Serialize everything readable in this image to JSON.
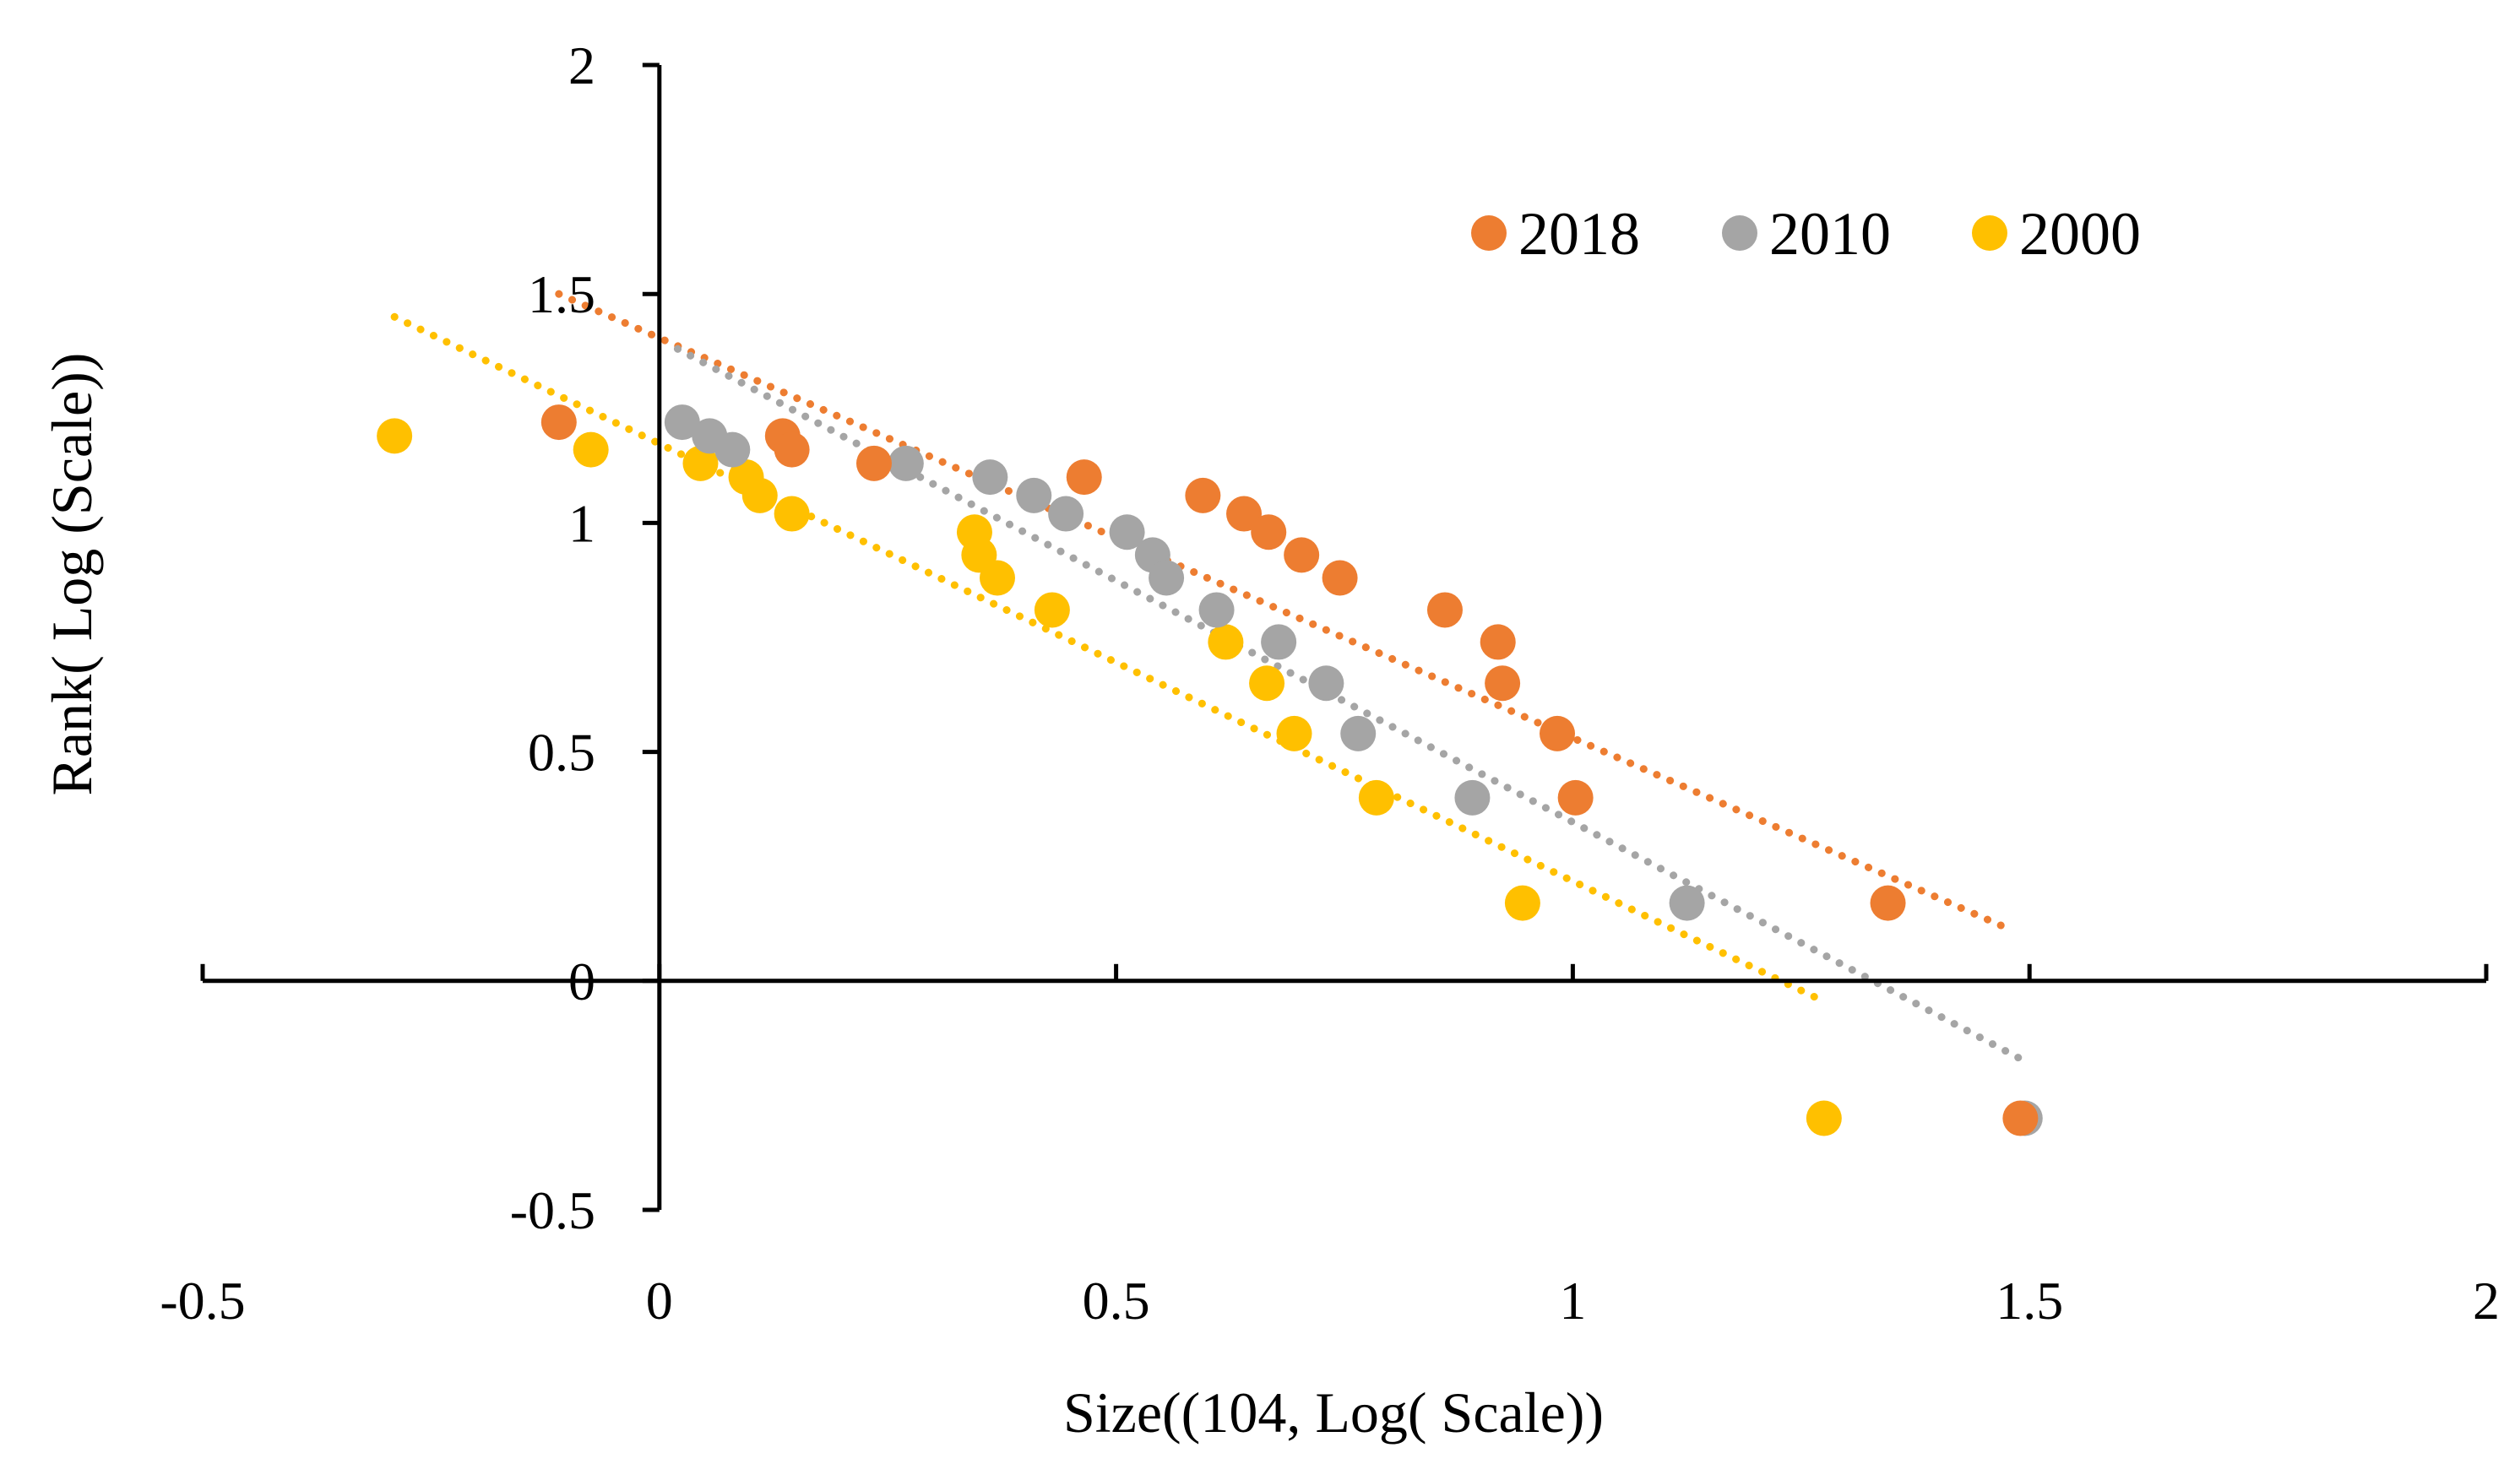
{
  "chart_data": {
    "type": "scatter",
    "title": "",
    "xlabel": "Size((104,  Log( Scale))",
    "ylabel": "Rank( Log (Scale))",
    "xlim": [
      -0.5,
      2
    ],
    "ylim": [
      -0.5,
      2
    ],
    "xticks": [
      -0.5,
      0,
      0.5,
      1,
      1.5,
      2
    ],
    "yticks": [
      -0.5,
      0,
      0.5,
      1,
      1.5,
      2
    ],
    "xtick_labels": [
      "-0.5",
      "0",
      "0.5",
      "1",
      "1.5",
      "2"
    ],
    "ytick_labels": [
      "-0.5",
      "0",
      "0.5",
      "1",
      "1.5",
      "2"
    ],
    "grid": false,
    "legend_position": "top-right",
    "series": [
      {
        "name": "2018",
        "color": "#ED7D31",
        "points": [
          [
            -0.11,
            1.22
          ],
          [
            0.135,
            1.19
          ],
          [
            0.145,
            1.16
          ],
          [
            0.235,
            1.13
          ],
          [
            0.465,
            1.1
          ],
          [
            0.595,
            1.06
          ],
          [
            0.64,
            1.02
          ],
          [
            0.667,
            0.98
          ],
          [
            0.703,
            0.93
          ],
          [
            0.745,
            0.88
          ],
          [
            0.86,
            0.81
          ],
          [
            0.918,
            0.74
          ],
          [
            0.923,
            0.65
          ],
          [
            0.983,
            0.54
          ],
          [
            1.003,
            0.4
          ],
          [
            1.345,
            0.17
          ],
          [
            1.49,
            -0.3
          ]
        ],
        "trendline": {
          "x0": -0.11,
          "y0": 1.5,
          "x1": 1.47,
          "y1": 0.12
        }
      },
      {
        "name": "2010",
        "color": "#A5A5A5",
        "points": [
          [
            0.025,
            1.22
          ],
          [
            0.055,
            1.19
          ],
          [
            0.08,
            1.16
          ],
          [
            0.27,
            1.13
          ],
          [
            0.362,
            1.1
          ],
          [
            0.41,
            1.06
          ],
          [
            0.445,
            1.02
          ],
          [
            0.512,
            0.98
          ],
          [
            0.54,
            0.93
          ],
          [
            0.555,
            0.88
          ],
          [
            0.61,
            0.81
          ],
          [
            0.678,
            0.74
          ],
          [
            0.73,
            0.65
          ],
          [
            0.765,
            0.54
          ],
          [
            0.89,
            0.4
          ],
          [
            1.125,
            0.17
          ],
          [
            1.495,
            -0.3
          ]
        ],
        "trendline": {
          "x0": 0.02,
          "y0": 1.38,
          "x1": 1.49,
          "y1": -0.17
        }
      },
      {
        "name": "2000",
        "color": "#FFC000",
        "points": [
          [
            -0.29,
            1.19
          ],
          [
            -0.075,
            1.16
          ],
          [
            0.045,
            1.13
          ],
          [
            0.095,
            1.1
          ],
          [
            0.11,
            1.06
          ],
          [
            0.145,
            1.02
          ],
          [
            0.345,
            0.98
          ],
          [
            0.35,
            0.93
          ],
          [
            0.37,
            0.88
          ],
          [
            0.43,
            0.81
          ],
          [
            0.62,
            0.74
          ],
          [
            0.665,
            0.65
          ],
          [
            0.695,
            0.54
          ],
          [
            0.785,
            0.4
          ],
          [
            0.945,
            0.17
          ],
          [
            1.275,
            -0.3
          ]
        ],
        "trendline": {
          "x0": -0.29,
          "y0": 1.45,
          "x1": 1.27,
          "y1": -0.04
        }
      }
    ]
  }
}
